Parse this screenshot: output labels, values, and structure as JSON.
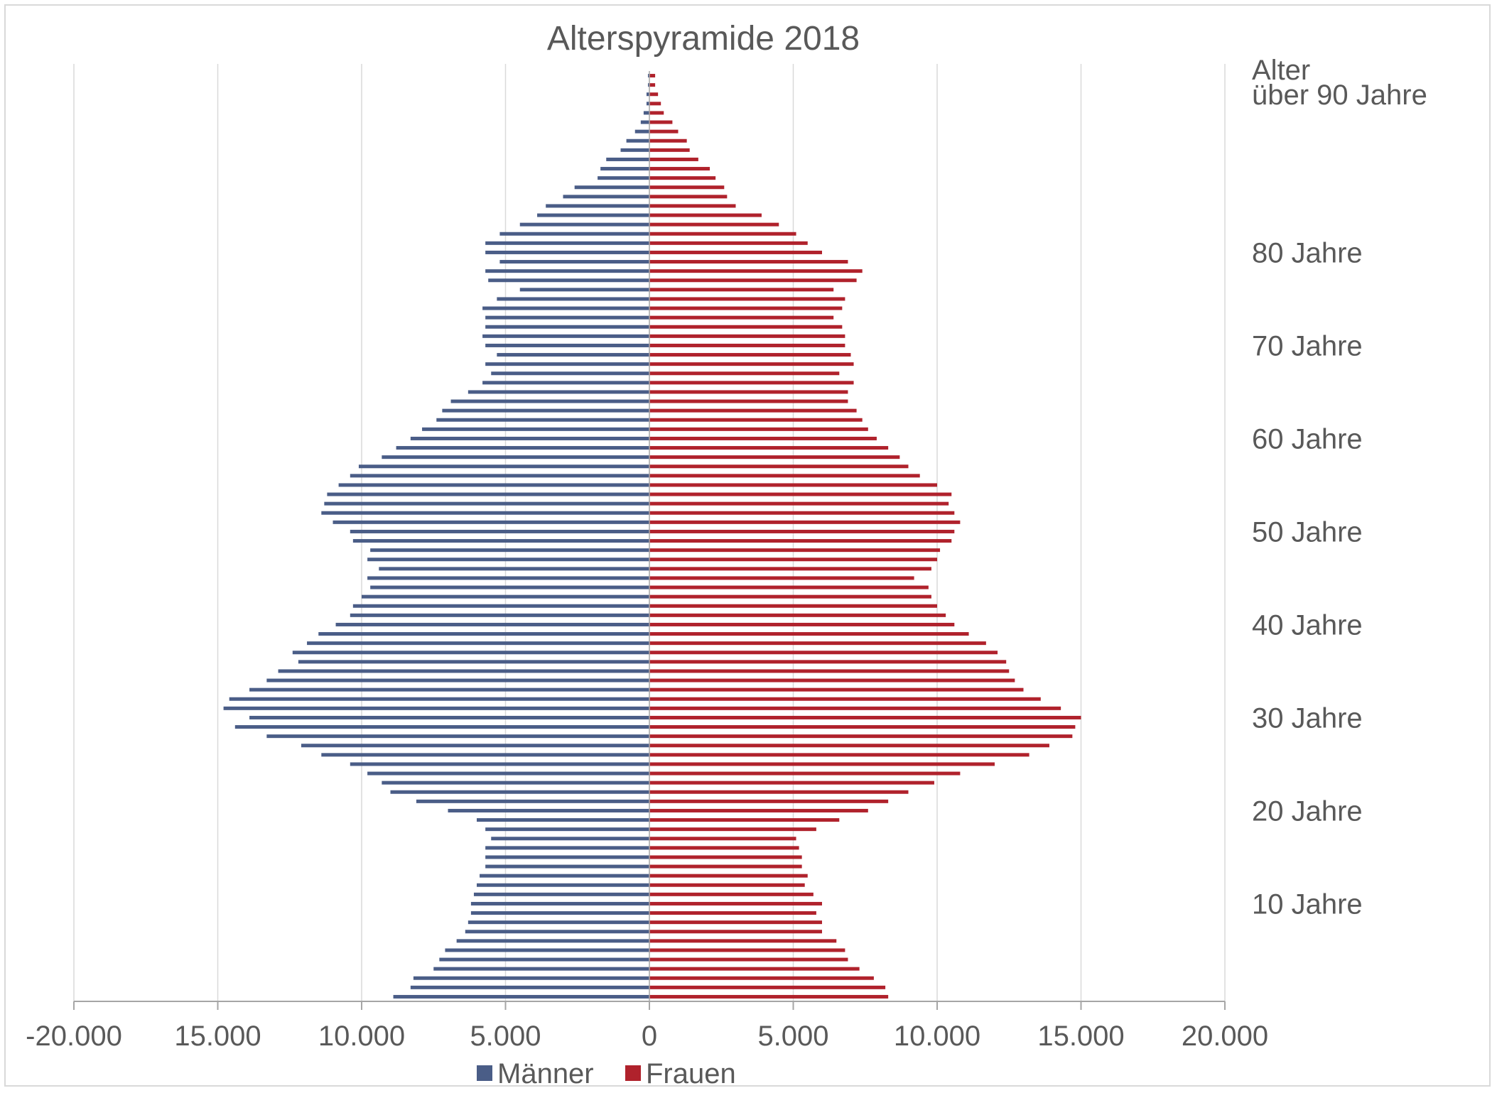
{
  "chart_data": {
    "type": "bar",
    "orientation": "horizontal",
    "title": "Alterspyramide 2018",
    "xlim": [
      -20000,
      20000
    ],
    "x_ticks": [
      -20000,
      -15000,
      -10000,
      -5000,
      0,
      5000,
      10000,
      15000,
      20000
    ],
    "x_tick_labels": [
      "-20.000",
      "15.000",
      "10.000",
      "5.000",
      "0",
      "5.000",
      "10.000",
      "15.000",
      "20.000"
    ],
    "y_header": "Alter",
    "y_labels": [
      {
        "age": 97,
        "text": "über 90 Jahre"
      },
      {
        "age": 80,
        "text": "80 Jahre"
      },
      {
        "age": 70,
        "text": "70 Jahre"
      },
      {
        "age": 60,
        "text": "60 Jahre"
      },
      {
        "age": 50,
        "text": "50 Jahre"
      },
      {
        "age": 40,
        "text": "40 Jahre"
      },
      {
        "age": 30,
        "text": "30 Jahre"
      },
      {
        "age": 20,
        "text": "20 Jahre"
      },
      {
        "age": 10,
        "text": "10 Jahre"
      }
    ],
    "grid": true,
    "legend_position": "bottom",
    "ages": [
      0,
      1,
      2,
      3,
      4,
      5,
      6,
      7,
      8,
      9,
      10,
      11,
      12,
      13,
      14,
      15,
      16,
      17,
      18,
      19,
      20,
      21,
      22,
      23,
      24,
      25,
      26,
      27,
      28,
      29,
      30,
      31,
      32,
      33,
      34,
      35,
      36,
      37,
      38,
      39,
      40,
      41,
      42,
      43,
      44,
      45,
      46,
      47,
      48,
      49,
      50,
      51,
      52,
      53,
      54,
      55,
      56,
      57,
      58,
      59,
      60,
      61,
      62,
      63,
      64,
      65,
      66,
      67,
      68,
      69,
      70,
      71,
      72,
      73,
      74,
      75,
      76,
      77,
      78,
      79,
      80,
      81,
      82,
      83,
      84,
      85,
      86,
      87,
      88,
      89,
      90,
      91,
      92,
      93,
      94,
      95,
      96,
      97,
      98,
      99
    ],
    "series": [
      {
        "name": "Männer",
        "color": "#4a5d87",
        "values": [
          -8900,
          -8300,
          -8200,
          -7500,
          -7300,
          -7100,
          -6700,
          -6400,
          -6300,
          -6200,
          -6200,
          -6100,
          -6000,
          -5900,
          -5700,
          -5700,
          -5700,
          -5500,
          -5700,
          -6000,
          -7000,
          -8100,
          -9000,
          -9300,
          -9800,
          -10400,
          -11400,
          -12100,
          -13300,
          -14400,
          -13900,
          -14800,
          -14600,
          -13900,
          -13300,
          -12900,
          -12200,
          -12400,
          -11900,
          -11500,
          -10900,
          -10400,
          -10300,
          -10000,
          -9700,
          -9800,
          -9400,
          -9800,
          -9700,
          -10300,
          -10400,
          -11000,
          -11400,
          -11300,
          -11200,
          -10800,
          -10400,
          -10100,
          -9300,
          -8800,
          -8300,
          -7900,
          -7400,
          -7200,
          -6900,
          -6300,
          -5800,
          -5500,
          -5700,
          -5300,
          -5700,
          -5800,
          -5700,
          -5700,
          -5800,
          -5300,
          -4500,
          -5600,
          -5700,
          -5200,
          -5700,
          -5700,
          -5200,
          -4500,
          -3900,
          -3600,
          -3000,
          -2600,
          -1800,
          -1700,
          -1500,
          -1000,
          -800,
          -500,
          -300,
          -200,
          -100,
          -100,
          -50,
          -50
        ]
      },
      {
        "name": "Frauen",
        "color": "#b0222c",
        "values": [
          8300,
          8200,
          7800,
          7300,
          6900,
          6800,
          6500,
          6000,
          6000,
          5800,
          6000,
          5700,
          5400,
          5500,
          5300,
          5300,
          5200,
          5100,
          5800,
          6600,
          7600,
          8300,
          9000,
          9900,
          10800,
          12000,
          13200,
          13900,
          14700,
          14800,
          15000,
          14300,
          13600,
          13000,
          12700,
          12500,
          12400,
          12100,
          11700,
          11100,
          10600,
          10300,
          10000,
          9800,
          9700,
          9200,
          9800,
          10000,
          10100,
          10500,
          10600,
          10800,
          10600,
          10400,
          10500,
          10000,
          9400,
          9000,
          8700,
          8300,
          7900,
          7600,
          7400,
          7200,
          6900,
          6900,
          7100,
          6600,
          7100,
          7000,
          6800,
          6800,
          6700,
          6400,
          6700,
          6800,
          6400,
          7200,
          7400,
          6900,
          6000,
          5500,
          5100,
          4500,
          3900,
          3000,
          2700,
          2600,
          2300,
          2100,
          1700,
          1400,
          1300,
          1000,
          800,
          500,
          400,
          300,
          200,
          200
        ]
      }
    ]
  }
}
